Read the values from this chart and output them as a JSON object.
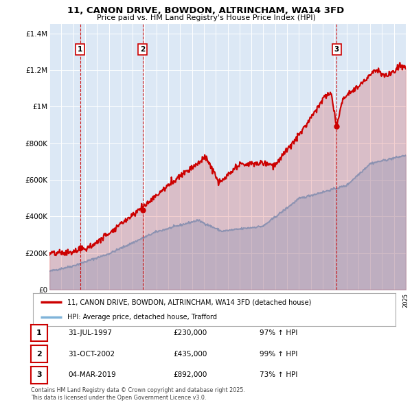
{
  "title": "11, CANON DRIVE, BOWDON, ALTRINCHAM, WA14 3FD",
  "subtitle": "Price paid vs. HM Land Registry's House Price Index (HPI)",
  "bg_color": "#ffffff",
  "plot_bg_color": "#dce8f5",
  "grid_color": "#ffffff",
  "ylim": [
    0,
    1450000
  ],
  "yticks": [
    0,
    200000,
    400000,
    600000,
    800000,
    1000000,
    1200000,
    1400000
  ],
  "ytick_labels": [
    "£0",
    "£200K",
    "£400K",
    "£600K",
    "£800K",
    "£1M",
    "£1.2M",
    "£1.4M"
  ],
  "year_start": 1995,
  "year_end": 2025,
  "red_color": "#cc0000",
  "blue_color": "#7fb3d9",
  "sale_year_floats": [
    1997.583,
    2002.833,
    2019.167
  ],
  "sale_prices": [
    230000,
    435000,
    892000
  ],
  "sale_labels": [
    "1",
    "2",
    "3"
  ],
  "legend_label_red": "11, CANON DRIVE, BOWDON, ALTRINCHAM, WA14 3FD (detached house)",
  "legend_label_blue": "HPI: Average price, detached house, Trafford",
  "table_entries": [
    {
      "num": "1",
      "date": "31-JUL-1997",
      "price": "£230,000",
      "hpi": "97% ↑ HPI"
    },
    {
      "num": "2",
      "date": "31-OCT-2002",
      "price": "£435,000",
      "hpi": "99% ↑ HPI"
    },
    {
      "num": "3",
      "date": "04-MAR-2019",
      "price": "£892,000",
      "hpi": "73% ↑ HPI"
    }
  ],
  "footnote1": "Contains HM Land Registry data © Crown copyright and database right 2025.",
  "footnote2": "This data is licensed under the Open Government Licence v3.0."
}
